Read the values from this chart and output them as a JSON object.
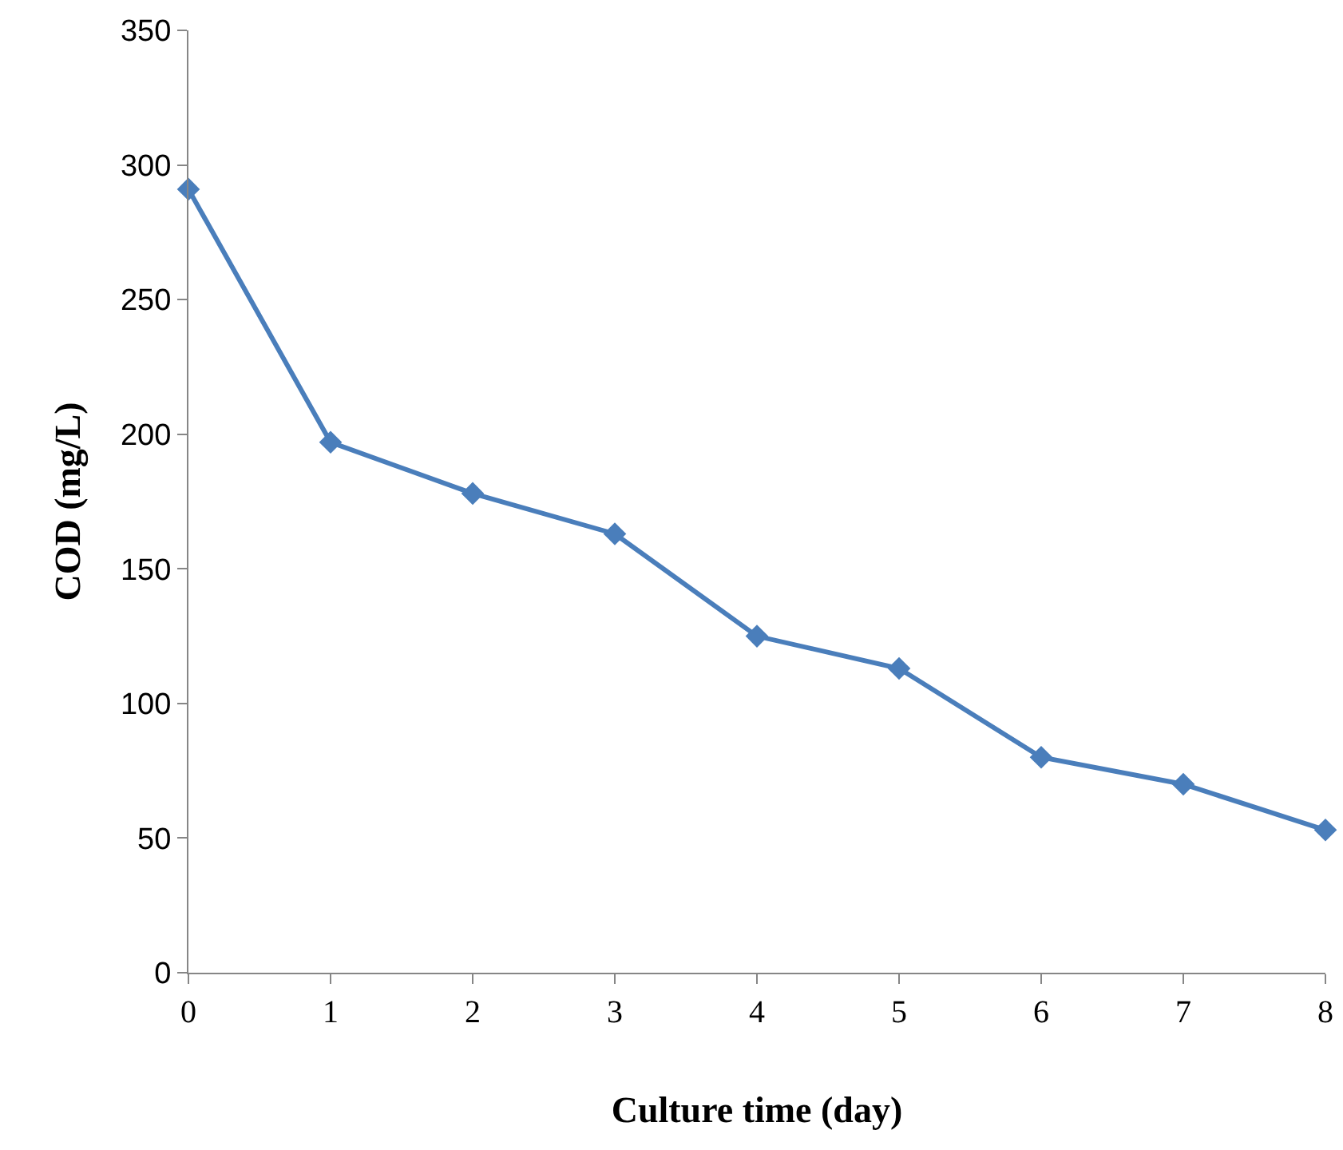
{
  "chart_data": {
    "type": "line",
    "xlabel": "Culture time (day)",
    "ylabel": "COD (mg/L)",
    "x": [
      0,
      1,
      2,
      3,
      4,
      5,
      6,
      7,
      8
    ],
    "series": [
      {
        "color": "#4a7ebb",
        "values": [
          291,
          197,
          178,
          163,
          125,
          113,
          80,
          70,
          53
        ]
      }
    ],
    "xlim": [
      0,
      8
    ],
    "xticks": [
      0,
      1,
      2,
      3,
      4,
      5,
      6,
      7,
      8
    ],
    "ylim": [
      0,
      350
    ],
    "yticks": [
      0,
      50,
      100,
      150,
      200,
      250,
      300,
      350
    ],
    "grid": false,
    "marker": "diamond",
    "line_style": "solid"
  }
}
